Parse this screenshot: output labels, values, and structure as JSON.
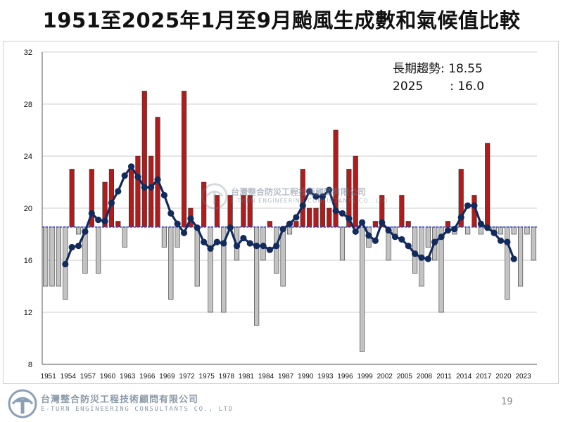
{
  "title": "1951至2025年1月至9月颱風生成數和氣候值比較",
  "annotation": {
    "line1": "長期趨勢: 18.55",
    "line2": "2025       : 16.0"
  },
  "footer": {
    "company_cn": "台灣整合防災工程技術顧問有限公司",
    "company_en": "E-TURN ENGINEERING CONSULTANTS CO., LTD",
    "page_number": "19"
  },
  "watermark": {
    "company_cn": "台灣整合防災工程技術顧問有限公司",
    "company_en": "E-TURN ENGINEERING CONSULTANTS CO., LTD"
  },
  "colors": {
    "above_bar": "#b01c1c",
    "below_bar": "#c3c3c3",
    "running_mean": "#132a5c",
    "climatology_line": "#3344dd",
    "grid": "#cccccc"
  },
  "chart_data": {
    "type": "bar",
    "title": "",
    "xlabel": "",
    "ylabel": "",
    "ylim": [
      8,
      32
    ],
    "yticks": [
      8,
      12,
      16,
      20,
      24,
      28,
      32
    ],
    "xtick_labels": [
      "1951",
      "1954",
      "1957",
      "1960",
      "1963",
      "1966",
      "1969",
      "1972",
      "1975",
      "1978",
      "1981",
      "1984",
      "1987",
      "1990",
      "1993",
      "1996",
      "1999",
      "2002",
      "2005",
      "2008",
      "2011",
      "2014",
      "2017",
      "2020",
      "2023"
    ],
    "baseline": 18.55,
    "years": [
      1951,
      1952,
      1953,
      1954,
      1955,
      1956,
      1957,
      1958,
      1959,
      1960,
      1961,
      1962,
      1963,
      1964,
      1965,
      1966,
      1967,
      1968,
      1969,
      1970,
      1971,
      1972,
      1973,
      1974,
      1975,
      1976,
      1977,
      1978,
      1979,
      1980,
      1981,
      1982,
      1983,
      1984,
      1985,
      1986,
      1987,
      1988,
      1989,
      1990,
      1991,
      1992,
      1993,
      1994,
      1995,
      1996,
      1997,
      1998,
      1999,
      2000,
      2001,
      2002,
      2003,
      2004,
      2005,
      2006,
      2007,
      2008,
      2009,
      2010,
      2011,
      2012,
      2013,
      2014,
      2015,
      2016,
      2017,
      2018,
      2019,
      2020,
      2021,
      2022,
      2023,
      2024,
      2025
    ],
    "series": [
      {
        "name": "",
        "type": "bar",
        "values": [
          14,
          14,
          14,
          13,
          23,
          18,
          15,
          23,
          15,
          22,
          23,
          19,
          17,
          23,
          24,
          29,
          24,
          27,
          17,
          13,
          17,
          29,
          20,
          14,
          22,
          12,
          21,
          12,
          21,
          16,
          21,
          21,
          11,
          16,
          19,
          15,
          14,
          18,
          19,
          23,
          20,
          20,
          21,
          20,
          26,
          16,
          23,
          24,
          9,
          17,
          19,
          21,
          16,
          18,
          21,
          19,
          15,
          14,
          17,
          16,
          12,
          19,
          18,
          23,
          18,
          21,
          18,
          25,
          18,
          18,
          13,
          18,
          14,
          18,
          16
        ]
      },
      {
        "name": "",
        "type": "line",
        "values": [
          null,
          null,
          null,
          15.7,
          17.0,
          17.1,
          18.2,
          19.6,
          19.1,
          19.0,
          20.4,
          21.3,
          22.5,
          23.2,
          22.4,
          21.6,
          21.6,
          22.2,
          21.0,
          19.6,
          18.8,
          18.1,
          19.2,
          18.5,
          17.4,
          16.9,
          17.4,
          17.3,
          18.5,
          17.1,
          17.7,
          17.3,
          17.1,
          17.1,
          16.8,
          17.1,
          18.4,
          18.8,
          19.3,
          20.2,
          21.3,
          20.9,
          20.9,
          21.4,
          19.8,
          19.6,
          19.2,
          18.2,
          18.9,
          17.9,
          17.5,
          18.9,
          18.3,
          17.8,
          17.6,
          17.1,
          16.5,
          16.2,
          16.1,
          17.4,
          17.8,
          18.3,
          18.4,
          19.3,
          20.2,
          20.2,
          18.8,
          18.5,
          18.1,
          17.5,
          17.4,
          16.1,
          null,
          null,
          null
        ]
      }
    ],
    "grid": "horizontal",
    "legend": "none"
  }
}
